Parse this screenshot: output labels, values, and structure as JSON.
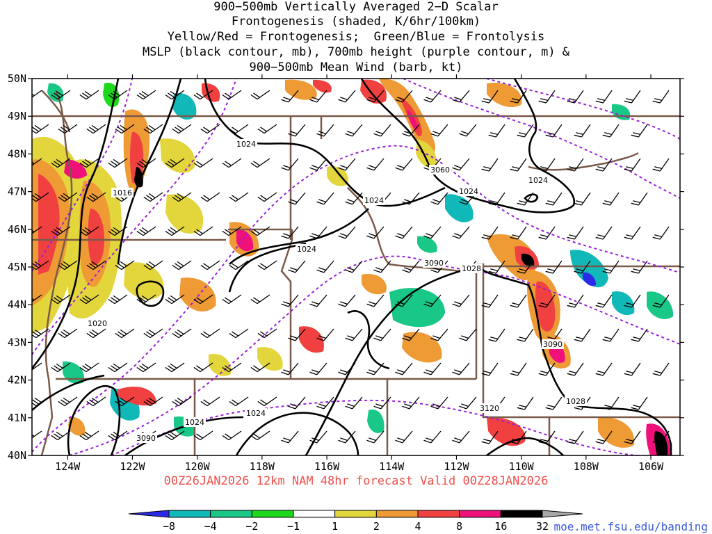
{
  "header": {
    "lines": [
      "900−500mb Vertically Averaged 2−D Scalar",
      "Frontogenesis (shaded, K/6hr/100km)",
      "Yellow/Red = Frontogenesis;  Green/Blue = Frontolysis",
      "MSLP (black contour, mb), 700mb height (purple contour, m) &",
      "900−500mb Mean Wind (barb, kt)"
    ]
  },
  "map": {
    "lat_labels": [
      "50N",
      "49N",
      "48N",
      "47N",
      "46N",
      "45N",
      "44N",
      "43N",
      "42N",
      "41N",
      "40N"
    ],
    "lon_labels": [
      "124W",
      "122W",
      "120W",
      "118W",
      "116W",
      "114W",
      "112W",
      "110W",
      "108W",
      "106W"
    ],
    "lat_range": [
      40,
      50
    ],
    "lon_range": [
      -125.1,
      -105.1
    ],
    "contour_labels": [
      {
        "text": "1024",
        "kind": "mslp"
      },
      {
        "text": "1016",
        "kind": "mslp"
      },
      {
        "text": "1024",
        "kind": "mslp"
      },
      {
        "text": "1024",
        "kind": "mslp"
      },
      {
        "text": "1024",
        "kind": "mslp"
      },
      {
        "text": "1024",
        "kind": "mslp"
      },
      {
        "text": "1020",
        "kind": "mslp"
      },
      {
        "text": "1028",
        "kind": "mslp"
      },
      {
        "text": "1028",
        "kind": "mslp"
      },
      {
        "text": "1024",
        "kind": "mslp"
      },
      {
        "text": "1024",
        "kind": "mslp"
      },
      {
        "text": "3060",
        "kind": "height"
      },
      {
        "text": "3090",
        "kind": "height"
      },
      {
        "text": "3090",
        "kind": "height"
      },
      {
        "text": "3090",
        "kind": "height"
      },
      {
        "text": "3120",
        "kind": "height"
      }
    ],
    "colors": {
      "frame": "#000000",
      "borders": "#7a5a48",
      "mslp": "#000000",
      "height": "#9a1fd8",
      "barbs": "#000000"
    }
  },
  "footer": {
    "forecast": "00Z26JAN2026 12km NAM 48hr forecast Valid 00Z28JAN2026",
    "credit": "moe.met.fsu.edu/banding"
  },
  "colorbar": {
    "labels": [
      "−8",
      "−4",
      "−2",
      "−1",
      "1",
      "2",
      "4",
      "8",
      "16",
      "32"
    ],
    "colors": [
      "#2a2ae8",
      "#11b8b8",
      "#19c887",
      "#1dd81d",
      "#ffffff",
      "#e3d63c",
      "#ee9a35",
      "#f04040",
      "#f0107a",
      "#000000",
      "#a8a8a8"
    ]
  },
  "legend_ticks": [
    "−8",
    "−4",
    "−2",
    "−1",
    "1",
    "2",
    "4",
    "8",
    "16",
    "32"
  ]
}
